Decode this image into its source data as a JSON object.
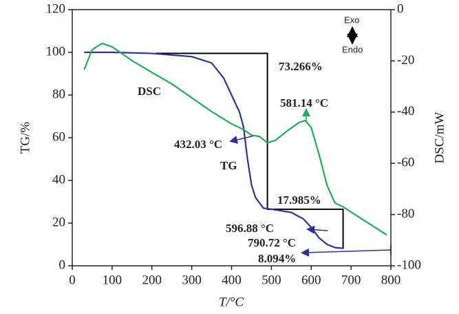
{
  "chart_data": {
    "type": "line",
    "x_label": "T/°C",
    "y_label": "TG/%",
    "y2_label": "DSC/mW",
    "xlim": [
      0,
      800
    ],
    "xticks": [
      0,
      100,
      200,
      300,
      400,
      500,
      600,
      700,
      800
    ],
    "ylim": [
      0,
      120
    ],
    "yticks": [
      0,
      20,
      40,
      60,
      80,
      100,
      120
    ],
    "y2lim": [
      -100,
      0
    ],
    "y2ticks": [
      0,
      -20,
      -40,
      -60,
      -80,
      -100
    ],
    "series": [
      {
        "name": "TG",
        "color": "#2f2f96",
        "x": [
          30,
          100,
          200,
          300,
          350,
          380,
          400,
          420,
          430,
          440,
          450,
          460,
          480,
          500,
          550,
          580,
          600,
          620,
          640,
          660,
          680
        ],
        "values": [
          100,
          100,
          99.5,
          98,
          95,
          88,
          80,
          72,
          65,
          50,
          38,
          32,
          27,
          26.5,
          25,
          22,
          18,
          13,
          10,
          8.5,
          8.2
        ]
      },
      {
        "name": "DSC",
        "color": "#1fae5a",
        "axis": "y2",
        "x": [
          30,
          50,
          75,
          100,
          150,
          200,
          250,
          300,
          350,
          400,
          430,
          450,
          470,
          490,
          510,
          540,
          570,
          585,
          600,
          620,
          640,
          660,
          680,
          720,
          760,
          790
        ],
        "values": [
          -23.4,
          -15.6,
          -13.2,
          -14.5,
          -19.9,
          -24.5,
          -29,
          -34.4,
          -39.8,
          -44.6,
          -46.8,
          -49,
          -49.5,
          -52,
          -51,
          -47.3,
          -44,
          -43.3,
          -46,
          -56.7,
          -68.8,
          -75.5,
          -77,
          -81,
          -85,
          -88
        ]
      }
    ],
    "step_line": {
      "color": "#000000",
      "x": [
        210,
        490,
        490,
        680,
        680
      ],
      "y": [
        99.5,
        99.5,
        26.5,
        26.5,
        8
      ]
    },
    "annotations": [
      {
        "text": "73.266%",
        "color": "#2f2f96"
      },
      {
        "text": "17.985%",
        "color": "#2f2f96"
      },
      {
        "text": "8.094%",
        "color": "#2f2f96"
      },
      {
        "text": "432.03 °C",
        "color": "#2f2f96"
      },
      {
        "text": "TG",
        "color": "#2f2f96"
      },
      {
        "text": "DSC",
        "color": "#1fae5a"
      },
      {
        "text": "581.14 °C",
        "color": "#1fae5a"
      },
      {
        "text": "596.88 °C",
        "color": "#2f2f96"
      },
      {
        "text": "790.72 °C",
        "color": "#2f2f96"
      },
      {
        "text": "Exo",
        "color": "#222222"
      },
      {
        "text": "Endo",
        "color": "#222222"
      }
    ]
  }
}
